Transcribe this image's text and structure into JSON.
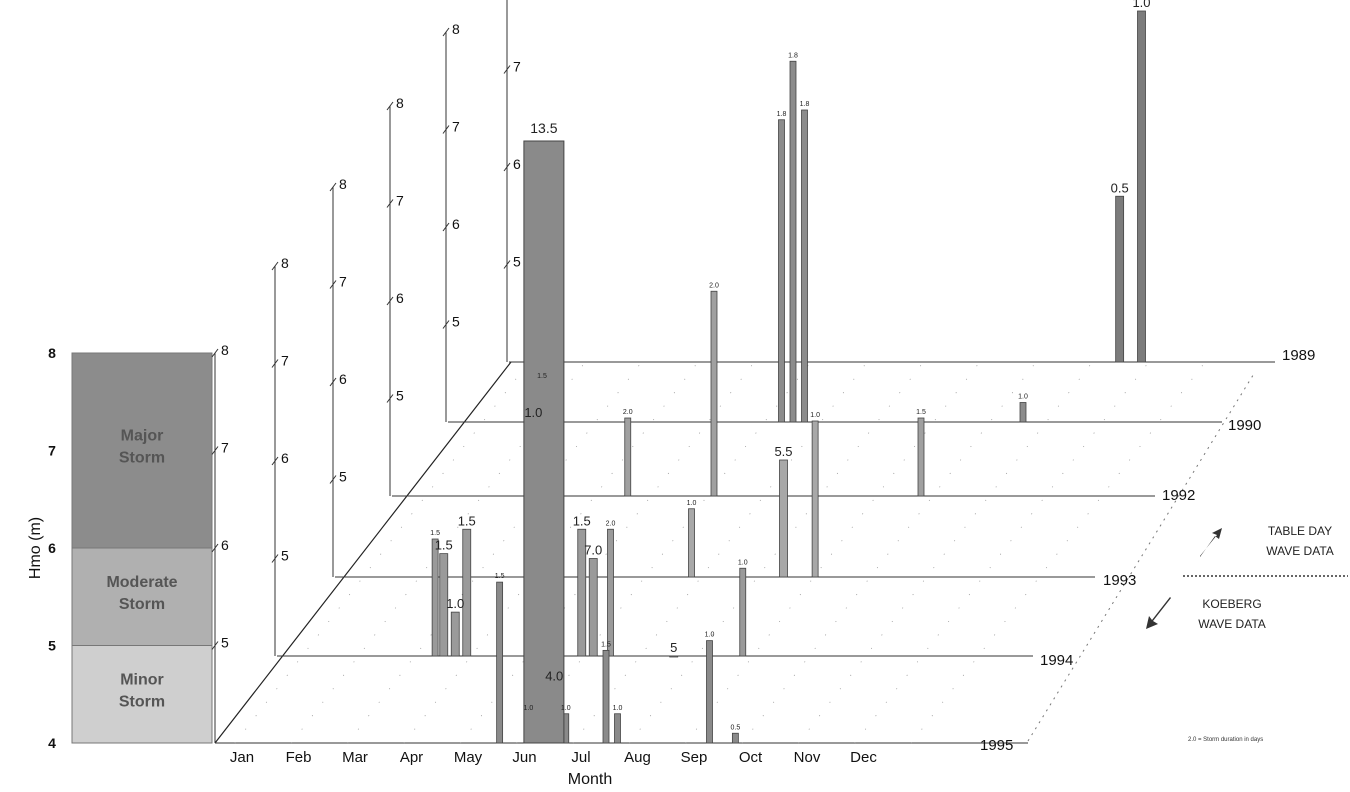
{
  "chart_data": {
    "type": "bar",
    "title": "",
    "xlabel": "Month",
    "ylabel": "Hmo (m)",
    "ylim": [
      4,
      8
    ],
    "y_ticks": [
      "4",
      "5",
      "6",
      "7",
      "8"
    ],
    "months": [
      "Jan",
      "Feb",
      "Mar",
      "Apr",
      "May",
      "Jun",
      "Jul",
      "Aug",
      "Sep",
      "Oct",
      "Nov",
      "Dec"
    ],
    "years": [
      "1995",
      "1994",
      "1993",
      "1992",
      "1990",
      "1989"
    ],
    "storm_bands": [
      {
        "name": "Minor Storm",
        "lines": [
          "Minor",
          "Storm"
        ],
        "from": 4,
        "to": 5,
        "color": "#cfcfcf"
      },
      {
        "name": "Moderate Storm",
        "lines": [
          "Moderate",
          "Storm"
        ],
        "from": 5,
        "to": 6,
        "color": "#b0b0b0"
      },
      {
        "name": "Major Storm",
        "lines": [
          "Major",
          "Storm"
        ],
        "from": 6,
        "to": 8,
        "color": "#8c8c8c"
      }
    ],
    "bars": [
      {
        "year": "1989",
        "month": 10.62,
        "hmo": 5.7,
        "label": "0.5",
        "small": false
      },
      {
        "year": "1989",
        "month": 11.0,
        "hmo": 7.6,
        "label": "1.0",
        "small": false
      },
      {
        "year": "1990",
        "month": 5.8,
        "hmo": 7.1,
        "label": "1.8",
        "small": true
      },
      {
        "year": "1990",
        "month": 6.0,
        "hmo": 7.7,
        "label": "1.8",
        "small": true
      },
      {
        "year": "1990",
        "month": 6.2,
        "hmo": 7.2,
        "label": "1.8",
        "small": true
      },
      {
        "year": "1990",
        "month": 10.0,
        "hmo": 4.2,
        "label": "1.0",
        "small": true
      },
      {
        "year": "1992",
        "month": 4.1,
        "hmo": 4.8,
        "label": "2.0",
        "small": true
      },
      {
        "year": "1992",
        "month": 5.6,
        "hmo": 6.1,
        "label": "2.0",
        "small": true
      },
      {
        "year": "1992",
        "month": 9.2,
        "hmo": 4.8,
        "label": "1.5",
        "small": true
      },
      {
        "year": "1993",
        "month": 3.45,
        "hmo": 5.6,
        "label": "1.0",
        "small": false
      },
      {
        "year": "1993",
        "month": 3.6,
        "hmo": 6.0,
        "label": "1.5",
        "small": true
      },
      {
        "year": "1993",
        "month": 6.2,
        "hmo": 4.7,
        "label": "1.0",
        "small": true
      },
      {
        "year": "1993",
        "month": 7.8,
        "hmo": 5.2,
        "label": "5.5",
        "small": false
      },
      {
        "year": "1993",
        "month": 8.35,
        "hmo": 5.6,
        "label": "1.0",
        "small": true
      },
      {
        "year": "1994",
        "month": 2.75,
        "hmo": 5.2,
        "label": "1.5",
        "small": true
      },
      {
        "year": "1994",
        "month": 2.9,
        "hmo": 5.05,
        "label": "1.5",
        "small": false
      },
      {
        "year": "1994",
        "month": 3.1,
        "hmo": 4.45,
        "label": "1.0",
        "small": false
      },
      {
        "year": "1994",
        "month": 3.3,
        "hmo": 5.3,
        "label": "1.5",
        "small": false
      },
      {
        "year": "1994",
        "month": 5.3,
        "hmo": 5.3,
        "label": "1.5",
        "small": false
      },
      {
        "year": "1994",
        "month": 5.5,
        "hmo": 5.0,
        "label": "7.0",
        "small": false
      },
      {
        "year": "1994",
        "month": 5.8,
        "hmo": 5.3,
        "label": "2.0",
        "small": true
      },
      {
        "year": "1994",
        "month": 6.9,
        "hmo": 4.0,
        "label": "5",
        "small": false
      },
      {
        "year": "1994",
        "month": 8.1,
        "hmo": 4.9,
        "label": "1.0",
        "small": true
      },
      {
        "year": "1995",
        "month": 4.95,
        "hmo": 5.65,
        "label": "1.5",
        "small": true
      },
      {
        "year": "1995",
        "month": 5.45,
        "hmo": 4.3,
        "label": "1.0",
        "small": true
      },
      {
        "year": "1995",
        "month": 5.9,
        "hmo": 4.6,
        "label": "4.0",
        "small": false
      },
      {
        "year": "1995",
        "month": 6.1,
        "hmo": 4.3,
        "label": "1.0",
        "small": true
      },
      {
        "year": "1995",
        "month": 6.8,
        "hmo": 4.95,
        "label": "1.5",
        "small": true
      },
      {
        "year": "1995",
        "month": 7.0,
        "hmo": 4.3,
        "label": "1.0",
        "small": true
      },
      {
        "year": "1995",
        "month": 8.6,
        "hmo": 5.05,
        "label": "1.0",
        "small": true
      },
      {
        "year": "1995",
        "month": 9.05,
        "hmo": 4.1,
        "label": "0.5",
        "small": true
      }
    ],
    "big_bar": {
      "year": "1995",
      "month": 5.72,
      "hmo_top": 13.5,
      "label": "13.5"
    },
    "legend": {
      "upper": {
        "lines": [
          "TABLE DAY",
          "WAVE DATA"
        ],
        "icon": "arrow-up-right-icon"
      },
      "lower": {
        "lines": [
          "KOEBERG",
          "WAVE DATA"
        ],
        "icon": "arrow-down-left-icon"
      }
    },
    "note": "2.0 = Storm duration in days"
  }
}
